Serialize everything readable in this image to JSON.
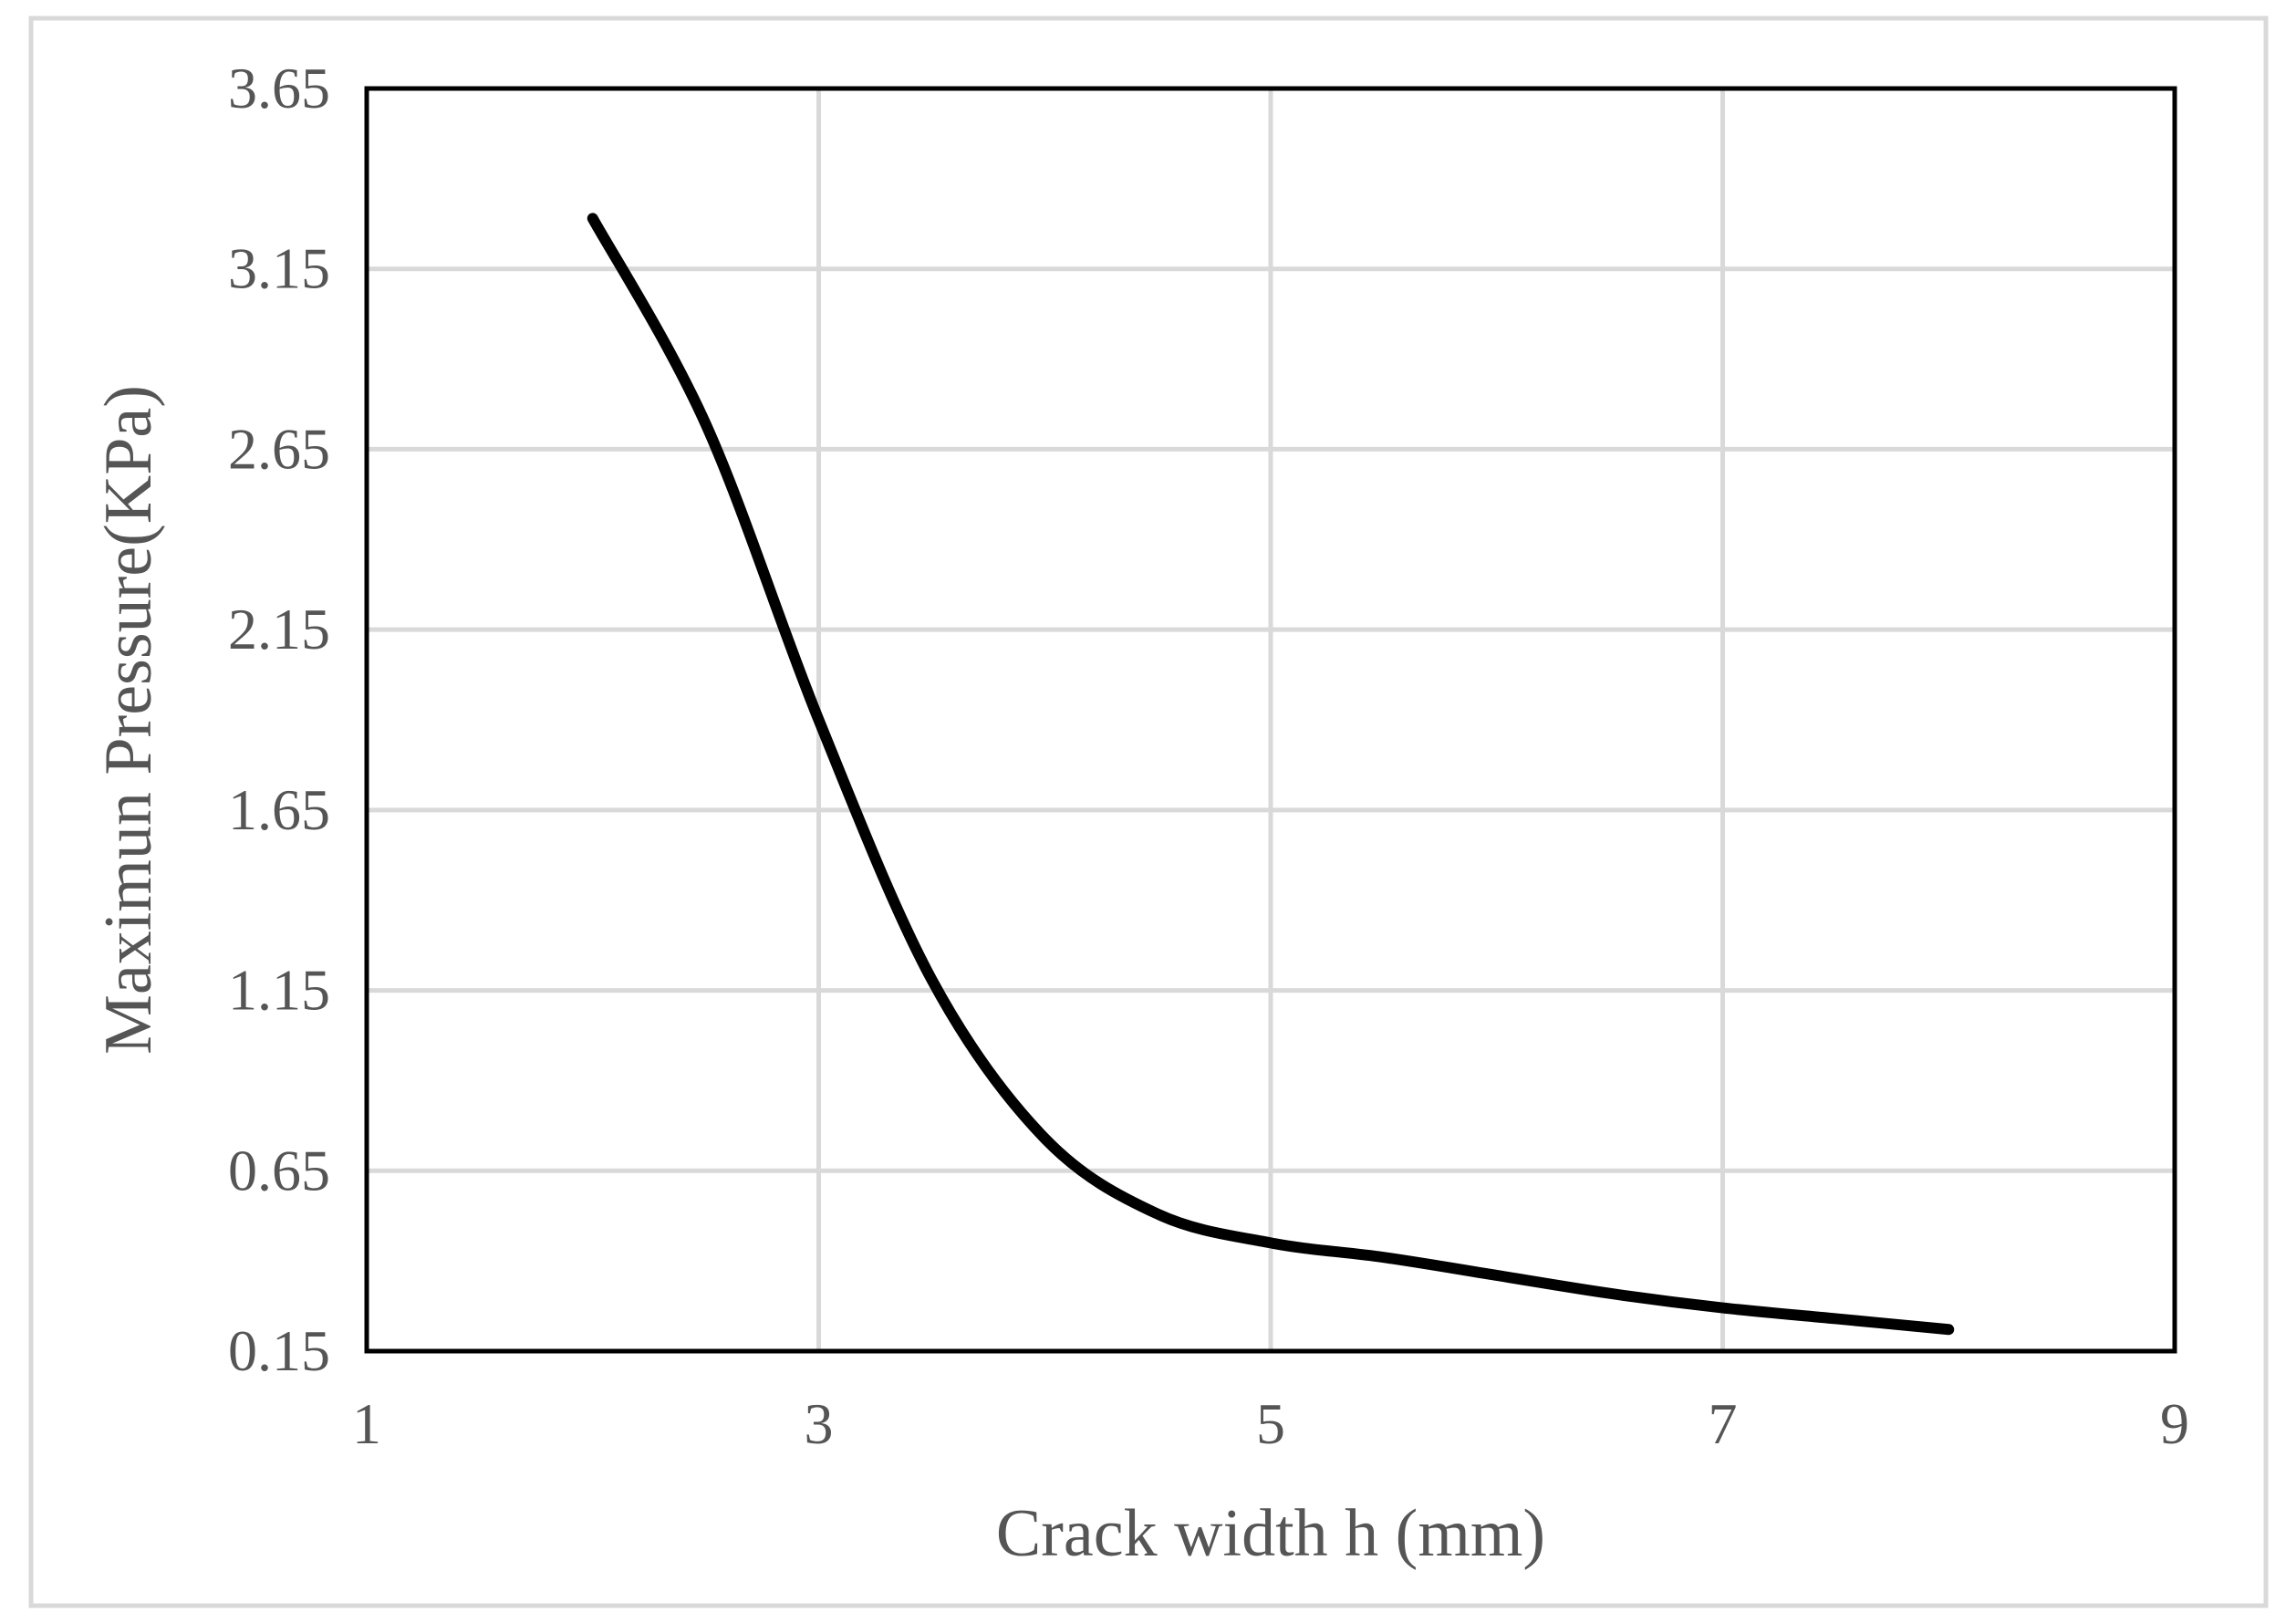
{
  "chart_data": {
    "type": "line",
    "title": "",
    "xlabel": "Crack width h (mm)",
    "ylabel": "Maximun Pressure(KPa)",
    "xlim": [
      1,
      9
    ],
    "ylim": [
      0.15,
      3.65
    ],
    "x_ticks": [
      "1",
      "3",
      "5",
      "7",
      "9"
    ],
    "y_ticks": [
      "0.15",
      "0.65",
      "1.15",
      "1.65",
      "2.15",
      "2.65",
      "3.15",
      "3.65"
    ],
    "grid": true,
    "legend": "none",
    "smooth": true,
    "colors": {
      "line": "#000000",
      "grid": "#d9d9d9",
      "plot_border": "#000000",
      "outer_border": "#d9d9d9",
      "text": "#555555"
    },
    "series": [
      {
        "x": [
          2,
          2.5,
          3,
          3.5,
          4,
          4.5,
          5,
          5.5,
          6,
          6.5,
          7,
          7.5,
          8
        ],
        "values": [
          3.29,
          2.72,
          1.9,
          1.18,
          0.74,
          0.53,
          0.45,
          0.41,
          0.36,
          0.31,
          0.27,
          0.24,
          0.21
        ]
      }
    ]
  }
}
